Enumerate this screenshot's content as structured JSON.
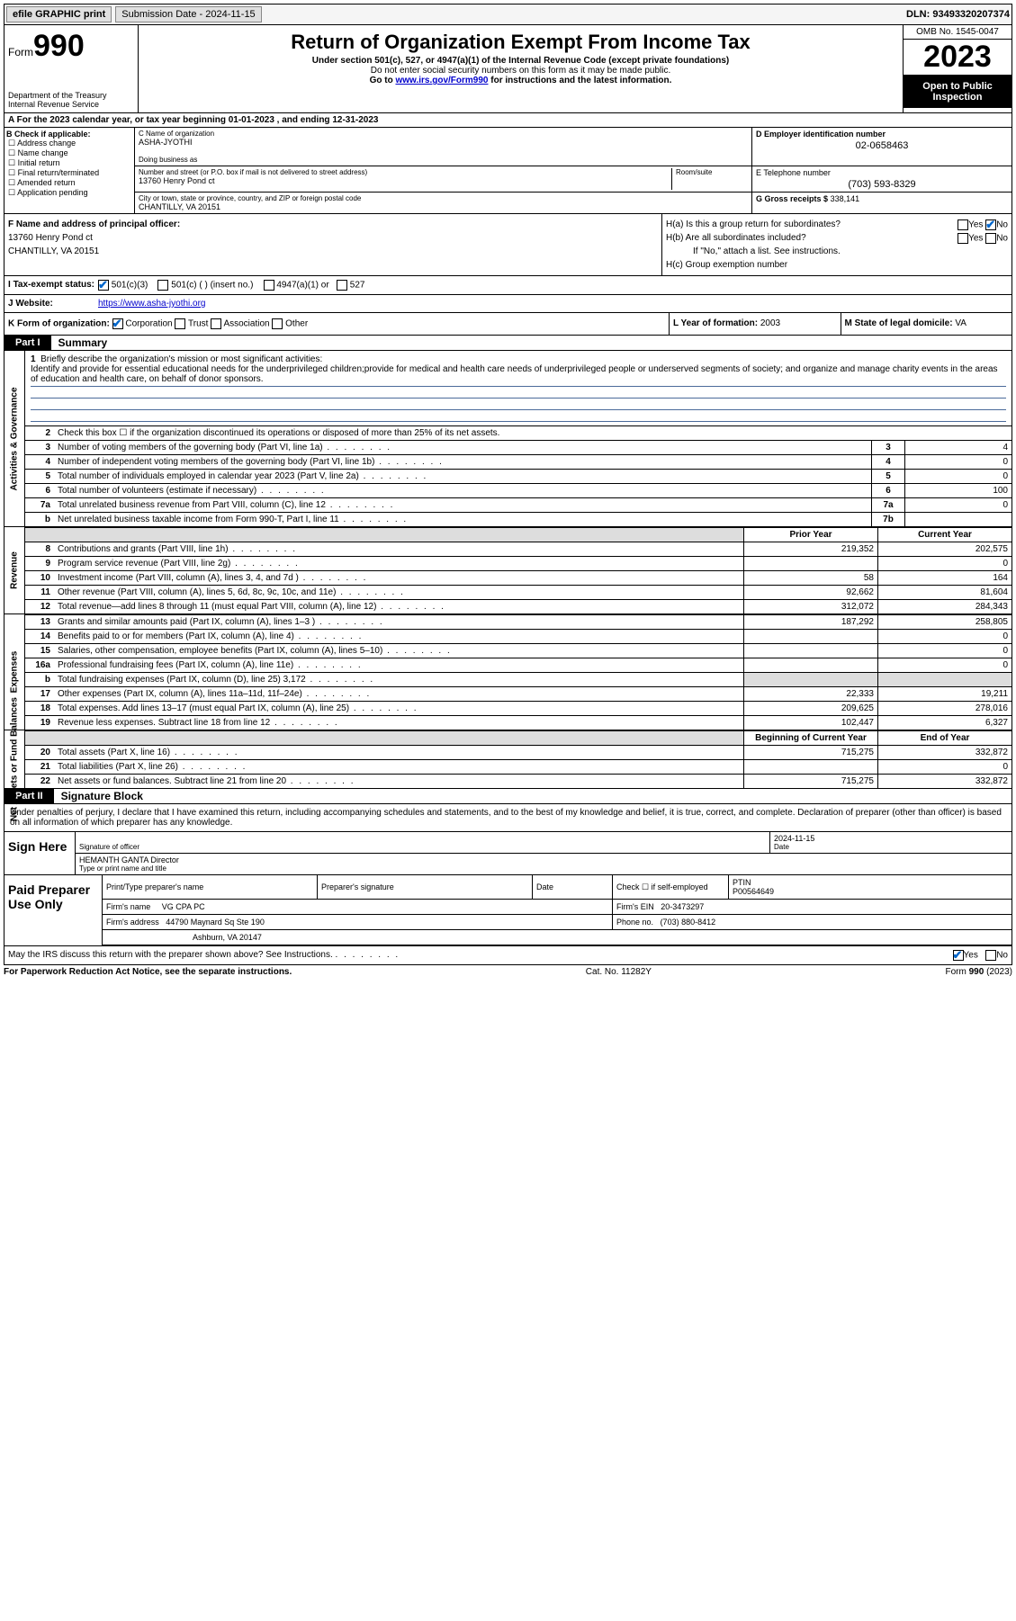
{
  "topbar": {
    "efile": "efile GRAPHIC print",
    "submission": "Submission Date - 2024-11-15",
    "dln": "DLN: 93493320207374"
  },
  "header": {
    "form_label": "Form",
    "form_num": "990",
    "title": "Return of Organization Exempt From Income Tax",
    "sub1": "Under section 501(c), 527, or 4947(a)(1) of the Internal Revenue Code (except private foundations)",
    "sub2": "Do not enter social security numbers on this form as it may be made public.",
    "sub3_pre": "Go to ",
    "sub3_link": "www.irs.gov/Form990",
    "sub3_post": " for instructions and the latest information.",
    "dept": "Department of the Treasury\nInternal Revenue Service",
    "omb": "OMB No. 1545-0047",
    "year": "2023",
    "open": "Open to Public Inspection"
  },
  "row_a": "A For the 2023 calendar year, or tax year beginning 01-01-2023   , and ending 12-31-2023",
  "col_b": {
    "hdr": "B Check if applicable:",
    "opts": [
      "Address change",
      "Name change",
      "Initial return",
      "Final return/terminated",
      "Amended return",
      "Application pending"
    ]
  },
  "col_c": {
    "name_lbl": "C Name of organization",
    "name": "ASHA-JYOTHI",
    "dba_lbl": "Doing business as",
    "dba": "",
    "addr_lbl": "Number and street (or P.O. box if mail is not delivered to street address)",
    "room_lbl": "Room/suite",
    "addr": "13760 Henry Pond ct",
    "city_lbl": "City or town, state or province, country, and ZIP or foreign postal code",
    "city": "CHANTILLY, VA  20151"
  },
  "col_d": {
    "ein_lbl": "D Employer identification number",
    "ein": "02-0658463",
    "tel_lbl": "E Telephone number",
    "tel": "(703) 593-8329",
    "gross_lbl": "G Gross receipts $",
    "gross": "338,141"
  },
  "f": {
    "lbl": "F Name and address of principal officer:",
    "addr1": "13760 Henry Pond ct",
    "addr2": "CHANTILLY, VA  20151"
  },
  "h": {
    "a": "H(a)  Is this a group return for subordinates?",
    "b": "H(b)  Are all subordinates included?",
    "b_note": "If \"No,\" attach a list. See instructions.",
    "c": "H(c)  Group exemption number"
  },
  "i": {
    "lbl": "Tax-exempt status:",
    "o1": "501(c)(3)",
    "o2": "501(c) (  ) (insert no.)",
    "o3": "4947(a)(1) or",
    "o4": "527"
  },
  "j": {
    "lbl": "Website:",
    "val": "https://www.asha-jyothi.org"
  },
  "k": {
    "lbl": "K Form of organization:",
    "o1": "Corporation",
    "o2": "Trust",
    "o3": "Association",
    "o4": "Other"
  },
  "l": {
    "lbl": "L Year of formation:",
    "val": "2003"
  },
  "m": {
    "lbl": "M State of legal domicile:",
    "val": "VA"
  },
  "part1": {
    "tab": "Part I",
    "title": "Summary"
  },
  "mission": {
    "n": "1",
    "lbl": "Briefly describe the organization's mission or most significant activities:",
    "text": "Identify and provide for essential educational needs for the underprivileged children;provide for medical and health care needs of underprivileged people or underserved segments of society; and organize and manage charity events in the areas of education and health care, on behalf of donor sponsors."
  },
  "gov_rows": [
    {
      "n": "2",
      "desc": "Check this box ☐ if the organization discontinued its operations or disposed of more than 25% of its net assets.",
      "box": "",
      "val": ""
    },
    {
      "n": "3",
      "desc": "Number of voting members of the governing body (Part VI, line 1a)",
      "box": "3",
      "val": "4"
    },
    {
      "n": "4",
      "desc": "Number of independent voting members of the governing body (Part VI, line 1b)",
      "box": "4",
      "val": "0"
    },
    {
      "n": "5",
      "desc": "Total number of individuals employed in calendar year 2023 (Part V, line 2a)",
      "box": "5",
      "val": "0"
    },
    {
      "n": "6",
      "desc": "Total number of volunteers (estimate if necessary)",
      "box": "6",
      "val": "100"
    },
    {
      "n": "7a",
      "desc": "Total unrelated business revenue from Part VIII, column (C), line 12",
      "box": "7a",
      "val": "0"
    },
    {
      "n": "b",
      "desc": "Net unrelated business taxable income from Form 990-T, Part I, line 11",
      "box": "7b",
      "val": ""
    }
  ],
  "rev_hdr": {
    "prior": "Prior Year",
    "curr": "Current Year"
  },
  "rev_rows": [
    {
      "n": "8",
      "desc": "Contributions and grants (Part VIII, line 1h)",
      "p": "219,352",
      "c": "202,575"
    },
    {
      "n": "9",
      "desc": "Program service revenue (Part VIII, line 2g)",
      "p": "",
      "c": "0"
    },
    {
      "n": "10",
      "desc": "Investment income (Part VIII, column (A), lines 3, 4, and 7d )",
      "p": "58",
      "c": "164"
    },
    {
      "n": "11",
      "desc": "Other revenue (Part VIII, column (A), lines 5, 6d, 8c, 9c, 10c, and 11e)",
      "p": "92,662",
      "c": "81,604"
    },
    {
      "n": "12",
      "desc": "Total revenue—add lines 8 through 11 (must equal Part VIII, column (A), line 12)",
      "p": "312,072",
      "c": "284,343"
    }
  ],
  "exp_rows": [
    {
      "n": "13",
      "desc": "Grants and similar amounts paid (Part IX, column (A), lines 1–3 )",
      "p": "187,292",
      "c": "258,805"
    },
    {
      "n": "14",
      "desc": "Benefits paid to or for members (Part IX, column (A), line 4)",
      "p": "",
      "c": "0"
    },
    {
      "n": "15",
      "desc": "Salaries, other compensation, employee benefits (Part IX, column (A), lines 5–10)",
      "p": "",
      "c": "0"
    },
    {
      "n": "16a",
      "desc": "Professional fundraising fees (Part IX, column (A), line 11e)",
      "p": "",
      "c": "0"
    },
    {
      "n": "b",
      "desc": "Total fundraising expenses (Part IX, column (D), line 25) 3,172",
      "p": "grey",
      "c": "grey"
    },
    {
      "n": "17",
      "desc": "Other expenses (Part IX, column (A), lines 11a–11d, 11f–24e)",
      "p": "22,333",
      "c": "19,211"
    },
    {
      "n": "18",
      "desc": "Total expenses. Add lines 13–17 (must equal Part IX, column (A), line 25)",
      "p": "209,625",
      "c": "278,016"
    },
    {
      "n": "19",
      "desc": "Revenue less expenses. Subtract line 18 from line 12",
      "p": "102,447",
      "c": "6,327"
    }
  ],
  "net_hdr": {
    "beg": "Beginning of Current Year",
    "end": "End of Year"
  },
  "net_rows": [
    {
      "n": "20",
      "desc": "Total assets (Part X, line 16)",
      "p": "715,275",
      "c": "332,872"
    },
    {
      "n": "21",
      "desc": "Total liabilities (Part X, line 26)",
      "p": "",
      "c": "0"
    },
    {
      "n": "22",
      "desc": "Net assets or fund balances. Subtract line 21 from line 20",
      "p": "715,275",
      "c": "332,872"
    }
  ],
  "part2": {
    "tab": "Part II",
    "title": "Signature Block"
  },
  "perjury": "Under penalties of perjury, I declare that I have examined this return, including accompanying schedules and statements, and to the best of my knowledge and belief, it is true, correct, and complete. Declaration of preparer (other than officer) is based on all information of which preparer has any knowledge.",
  "sign": {
    "left": "Sign Here",
    "sig_lbl": "Signature of officer",
    "date_lbl": "Date",
    "date_val": "2024-11-15",
    "name": "HEMANTH GANTA Director",
    "name_lbl": "Type or print name and title"
  },
  "prep": {
    "left": "Paid Preparer Use Only",
    "r1": {
      "c1": "Print/Type preparer's name",
      "c2": "Preparer's signature",
      "c3": "Date",
      "c4": "Check ☐ if self-employed",
      "c5_lbl": "PTIN",
      "c5": "P00564649"
    },
    "r2": {
      "lbl": "Firm's name",
      "val": "VG CPA PC",
      "ein_lbl": "Firm's EIN",
      "ein": "20-3473297"
    },
    "r3": {
      "lbl": "Firm's address",
      "val": "44790 Maynard Sq Ste 190",
      "ph_lbl": "Phone no.",
      "ph": "(703) 880-8412"
    },
    "r4": {
      "val": "Ashburn, VA  20147"
    }
  },
  "discuss": {
    "q": "May the IRS discuss this return with the preparer shown above? See Instructions.",
    "yes": "Yes",
    "no": "No"
  },
  "footer": {
    "l": "For Paperwork Reduction Act Notice, see the separate instructions.",
    "c": "Cat. No. 11282Y",
    "r": "Form 990 (2023)"
  },
  "sidebars": {
    "gov": "Activities & Governance",
    "rev": "Revenue",
    "exp": "Expenses",
    "net": "Net Assets or Fund Balances"
  }
}
